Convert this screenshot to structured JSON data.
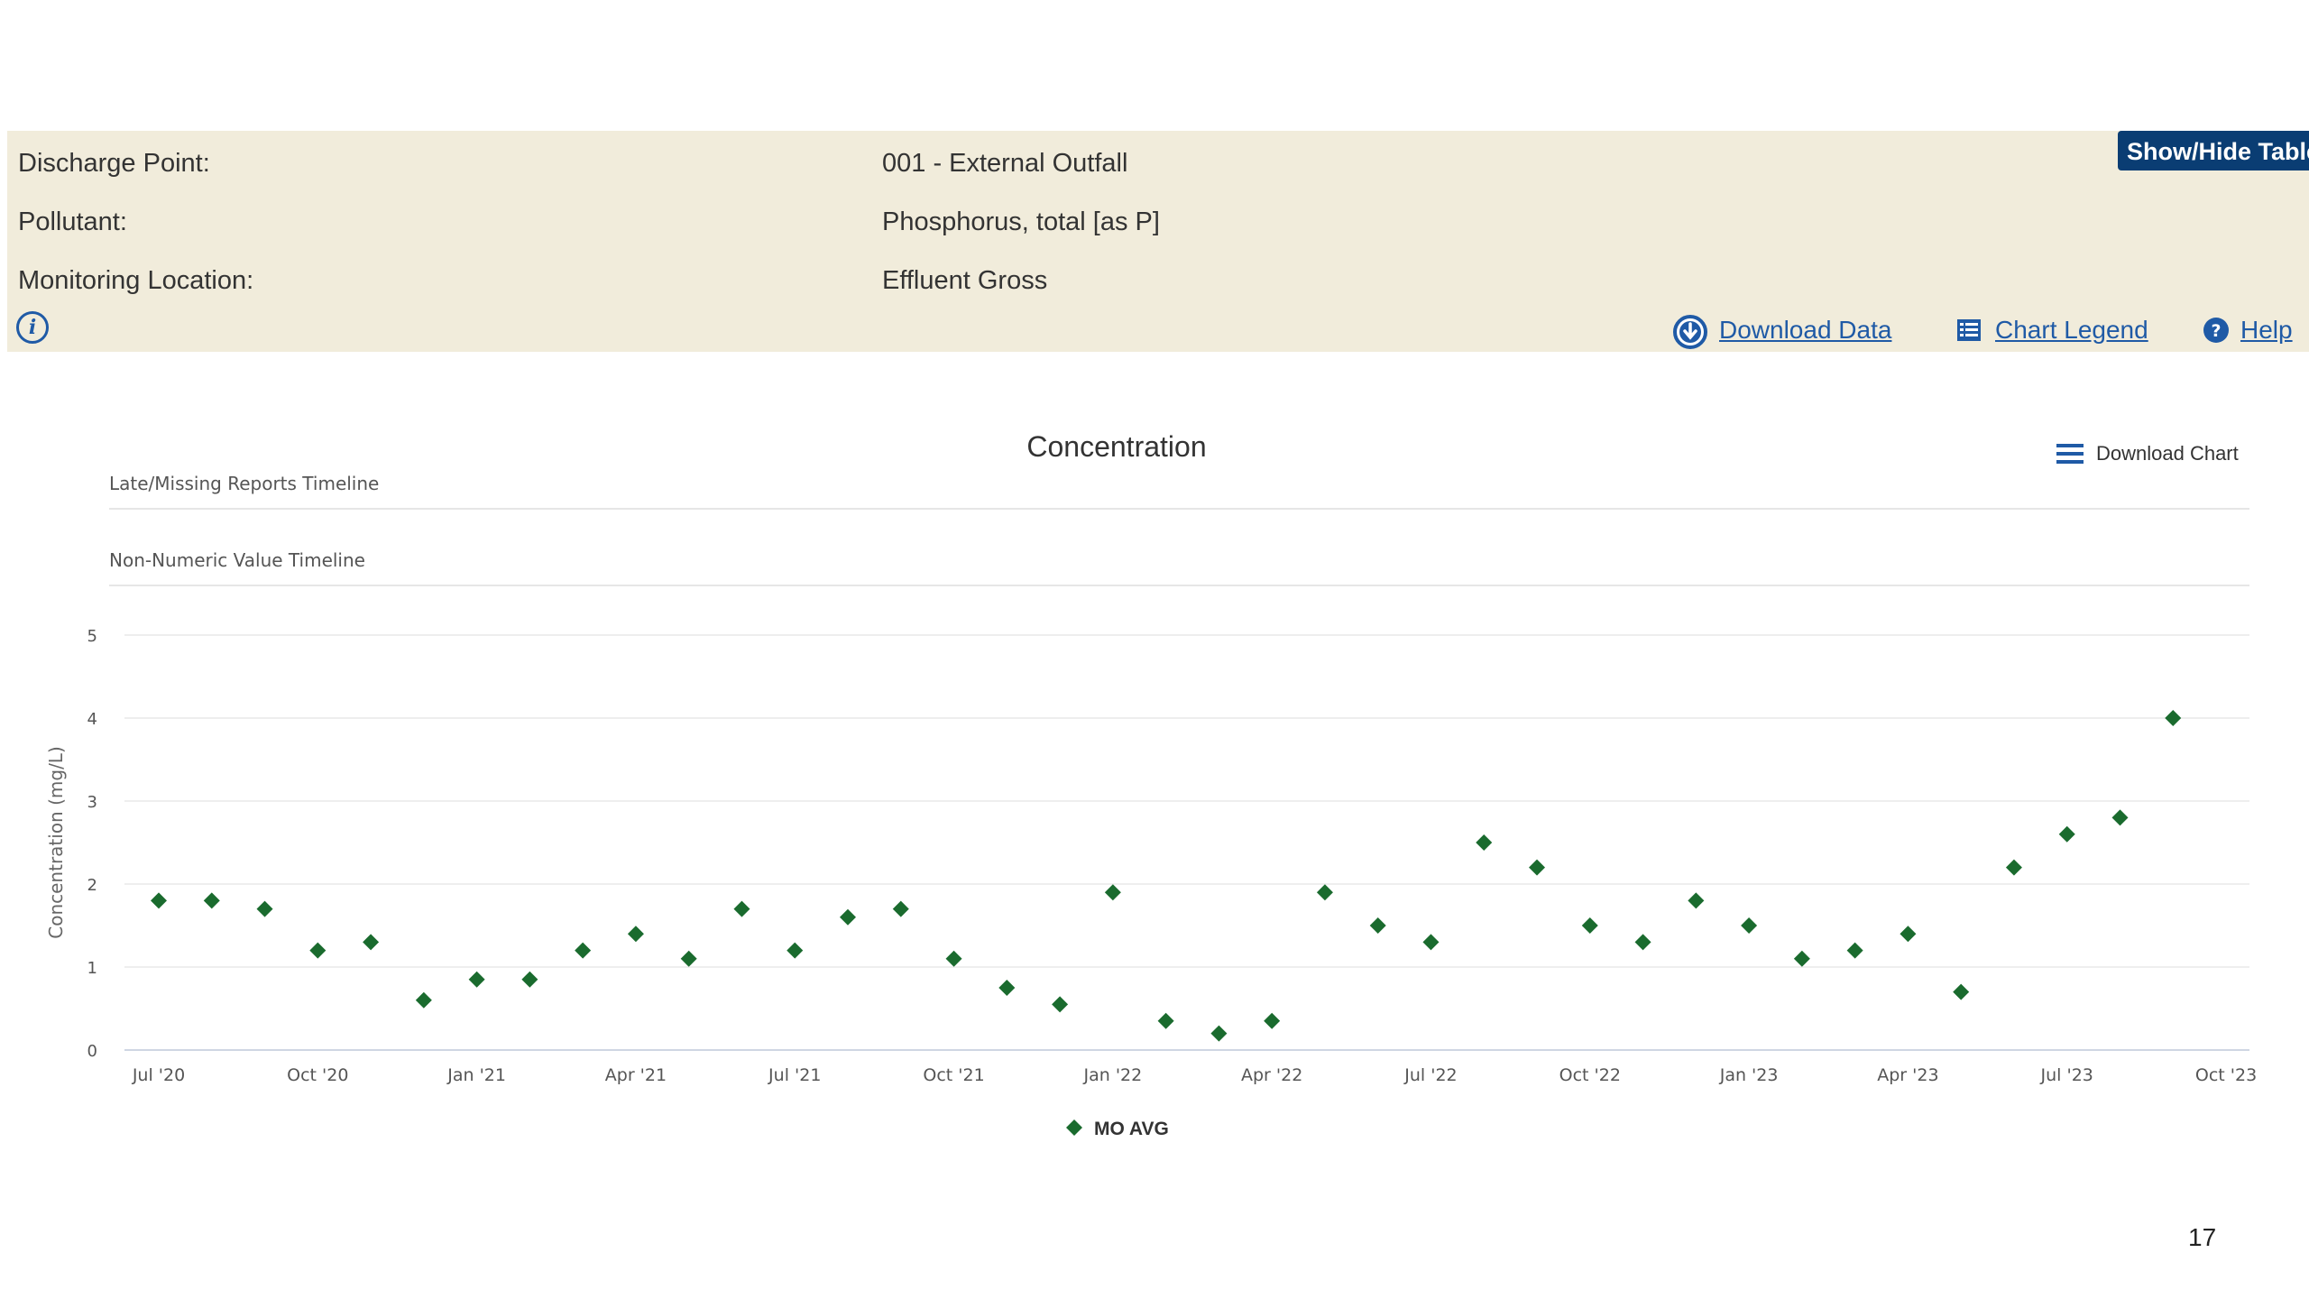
{
  "info": {
    "discharge_label": "Discharge Point:",
    "discharge_value": "001 - External Outfall",
    "pollutant_label": "Pollutant:",
    "pollutant_value": "Phosphorus, total [as P]",
    "location_label": "Monitoring Location:",
    "location_value": "Effluent Gross",
    "info_icon_glyph": "i",
    "toggle_label": "Show/Hide Table"
  },
  "actions": {
    "download_data": "Download Data",
    "chart_legend": "Chart Legend",
    "help": "Help",
    "download_chart": "Download Chart"
  },
  "colors": {
    "panel_bg": "#f1ecdb",
    "link": "#1f5aa6",
    "toggle_bg": "#0a3d73",
    "marker": "#1a6b2e"
  },
  "icons": {
    "download_data": "download-circle-icon",
    "chart_legend": "list-icon",
    "help": "help-circle-icon",
    "download_chart": "hamburger-menu-icon",
    "info": "info-icon"
  },
  "page_number": "17",
  "chart_data": {
    "type": "scatter",
    "title": "Concentration",
    "ylabel": "Concentration (mg/L)",
    "ylim": [
      0,
      5
    ],
    "y_ticks": [
      "0",
      "1",
      "2",
      "3",
      "4",
      "5"
    ],
    "timelines": [
      "Late/Missing Reports Timeline",
      "Non-Numeric Value Timeline"
    ],
    "x_ticks": [
      {
        "label": "Jul '20",
        "date": "2020-07"
      },
      {
        "label": "Oct '20",
        "date": "2020-10"
      },
      {
        "label": "Jan '21",
        "date": "2021-01"
      },
      {
        "label": "Apr '21",
        "date": "2021-04"
      },
      {
        "label": "Jul '21",
        "date": "2021-07"
      },
      {
        "label": "Oct '21",
        "date": "2021-10"
      },
      {
        "label": "Jan '22",
        "date": "2022-01"
      },
      {
        "label": "Apr '22",
        "date": "2022-04"
      },
      {
        "label": "Jul '22",
        "date": "2022-07"
      },
      {
        "label": "Oct '22",
        "date": "2022-10"
      },
      {
        "label": "Jan '23",
        "date": "2023-01"
      },
      {
        "label": "Apr '23",
        "date": "2023-04"
      },
      {
        "label": "Jul '23",
        "date": "2023-07"
      },
      {
        "label": "Oct '23",
        "date": "2023-10"
      }
    ],
    "legend": "bottom-center",
    "grid": true,
    "series": [
      {
        "name": "MO AVG",
        "points": [
          {
            "x": "2020-07",
            "y": 1.8
          },
          {
            "x": "2020-08",
            "y": 1.8
          },
          {
            "x": "2020-09",
            "y": 1.7
          },
          {
            "x": "2020-10",
            "y": 1.2
          },
          {
            "x": "2020-11",
            "y": 1.3
          },
          {
            "x": "2020-12",
            "y": 0.6
          },
          {
            "x": "2021-01",
            "y": 0.85
          },
          {
            "x": "2021-02",
            "y": 0.85
          },
          {
            "x": "2021-03",
            "y": 1.2
          },
          {
            "x": "2021-04",
            "y": 1.4
          },
          {
            "x": "2021-05",
            "y": 1.1
          },
          {
            "x": "2021-06",
            "y": 1.7
          },
          {
            "x": "2021-07",
            "y": 1.2
          },
          {
            "x": "2021-08",
            "y": 1.6
          },
          {
            "x": "2021-09",
            "y": 1.7
          },
          {
            "x": "2021-10",
            "y": 1.1
          },
          {
            "x": "2021-11",
            "y": 0.75
          },
          {
            "x": "2021-12",
            "y": 0.55
          },
          {
            "x": "2022-01",
            "y": 1.9
          },
          {
            "x": "2022-02",
            "y": 0.35
          },
          {
            "x": "2022-03",
            "y": 0.2
          },
          {
            "x": "2022-04",
            "y": 0.35
          },
          {
            "x": "2022-05",
            "y": 1.9
          },
          {
            "x": "2022-06",
            "y": 1.5
          },
          {
            "x": "2022-07",
            "y": 1.3
          },
          {
            "x": "2022-08",
            "y": 2.5
          },
          {
            "x": "2022-09",
            "y": 2.2
          },
          {
            "x": "2022-10",
            "y": 1.5
          },
          {
            "x": "2022-11",
            "y": 1.3
          },
          {
            "x": "2022-12",
            "y": 1.8
          },
          {
            "x": "2023-01",
            "y": 1.5
          },
          {
            "x": "2023-02",
            "y": 1.1
          },
          {
            "x": "2023-03",
            "y": 1.2
          },
          {
            "x": "2023-04",
            "y": 1.4
          },
          {
            "x": "2023-05",
            "y": 0.7
          },
          {
            "x": "2023-06",
            "y": 2.2
          },
          {
            "x": "2023-07",
            "y": 2.6
          },
          {
            "x": "2023-08",
            "y": 2.8
          },
          {
            "x": "2023-09",
            "y": 4.0
          }
        ]
      }
    ]
  }
}
